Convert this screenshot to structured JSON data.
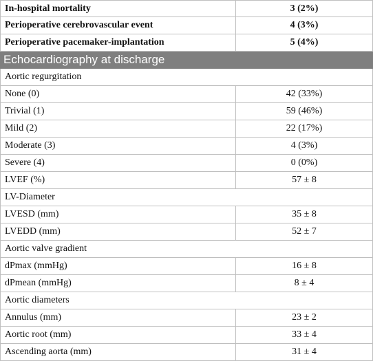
{
  "table": {
    "top_rows": [
      [
        "In-hospital mortality",
        "3 (2%)"
      ],
      [
        "Perioperative cerebrovascular event",
        "4 (3%)"
      ],
      [
        "Perioperative pacemaker-implantation",
        "5 (4%)"
      ]
    ],
    "section": {
      "title": "Echocardiography at discharge",
      "rows": [
        [
          "Aortic regurgitation"
        ],
        [
          "None (0)",
          "42 (33%)"
        ],
        [
          "Trivial (1)",
          "59 (46%)"
        ],
        [
          "Mild (2)",
          "22 (17%)"
        ],
        [
          "Moderate (3)",
          "4 (3%)"
        ],
        [
          "Severe (4)",
          "0 (0%)"
        ],
        [
          "LVEF (%)",
          "57 ± 8"
        ],
        [
          "LV-Diameter"
        ],
        [
          "LVESD (mm)",
          "35 ± 8"
        ],
        [
          "LVEDD (mm)",
          "52 ± 7"
        ],
        [
          "Aortic valve gradient"
        ],
        [
          "dPmax (mmHg)",
          "16 ± 8"
        ],
        [
          "dPmean (mmHg)",
          "8 ± 4"
        ],
        [
          "Aortic diameters"
        ],
        [
          "Annulus (mm)",
          "23 ± 2"
        ],
        [
          "Aortic root (mm)",
          "33 ± 4"
        ],
        [
          "Ascending aorta (mm)",
          "31 ± 4"
        ]
      ]
    }
  }
}
